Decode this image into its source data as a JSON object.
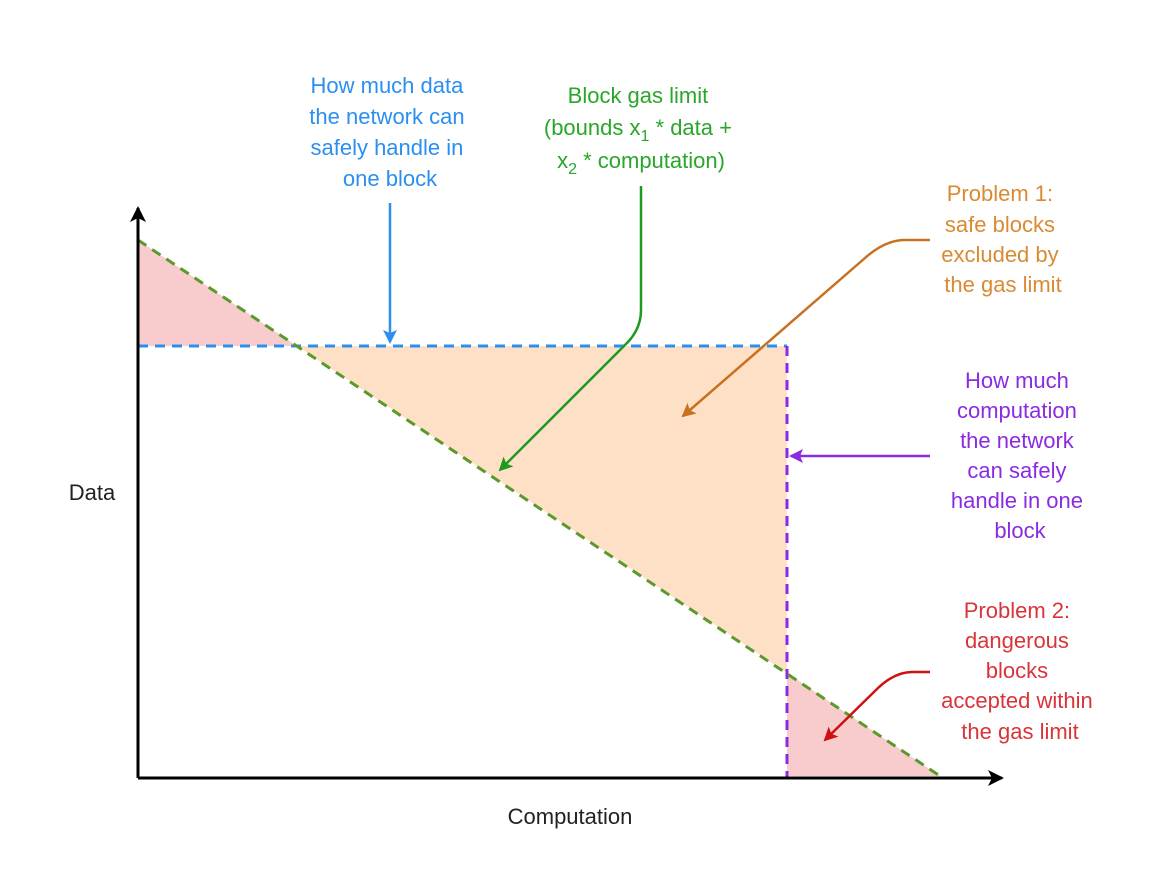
{
  "axes": {
    "x_label": "Computation",
    "y_label": "Data"
  },
  "annotations": {
    "data_limit": {
      "lines": [
        "How much data",
        "the network can",
        "safely handle in",
        "one block"
      ],
      "color": "#2b8ff0"
    },
    "gas_limit": {
      "lines": [
        "Block gas limit",
        "(bounds x",
        "1",
        " * data +",
        "x",
        "2",
        " * computation)"
      ],
      "color": "#2aa62a"
    },
    "problem1": {
      "lines": [
        "Problem 1:",
        "safe blocks",
        "excluded by",
        "the gas limit"
      ],
      "color": "#d98a33"
    },
    "computation_limit": {
      "lines": [
        "How much",
        "computation",
        "the network",
        "can safely",
        "handle in one",
        "block"
      ],
      "color": "#8a2be2"
    },
    "problem2": {
      "lines": [
        "Problem 2:",
        "dangerous",
        "blocks",
        "accepted within",
        "the gas limit"
      ],
      "color": "#d9343a"
    }
  },
  "colors": {
    "excluded_region": "#fde0c5",
    "dangerous_region": "#f8cccc",
    "gas_line": "#5a9a2a",
    "data_line": "#2b8ff0",
    "computation_line": "#8a2be2"
  }
}
